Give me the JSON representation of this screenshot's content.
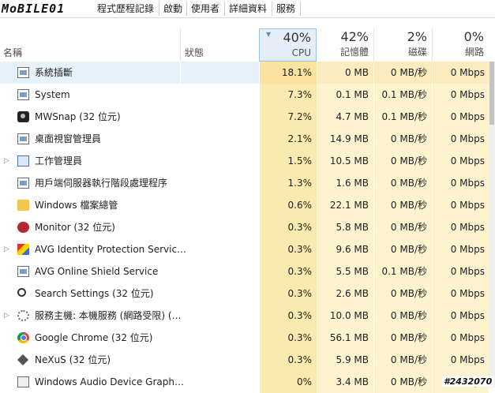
{
  "logo_text": "MoBILE01",
  "tabs": [
    "程式歷程記錄",
    "啟動",
    "使用者",
    "詳細資料",
    "服務"
  ],
  "columns": {
    "name": "名稱",
    "status": "狀態",
    "cpu": {
      "pct": "40%",
      "label": "CPU"
    },
    "memory": {
      "pct": "42%",
      "label": "記憶體"
    },
    "disk": {
      "pct": "2%",
      "label": "磁碟"
    },
    "network": {
      "pct": "0%",
      "label": "網路"
    }
  },
  "processes": [
    {
      "name": "系統插斷",
      "cpu": "18.1%",
      "mem": "0 MB",
      "disk": "0 MB/秒",
      "net": "0 Mbps",
      "icon": "window-icon",
      "expandable": false,
      "selected": true
    },
    {
      "name": "System",
      "cpu": "7.3%",
      "mem": "0.1 MB",
      "disk": "0.1 MB/秒",
      "net": "0 Mbps",
      "icon": "window-icon",
      "expandable": false
    },
    {
      "name": "MWSnap (32 位元)",
      "cpu": "7.2%",
      "mem": "4.7 MB",
      "disk": "0.1 MB/秒",
      "net": "0 Mbps",
      "icon": "camera-icon",
      "expandable": false
    },
    {
      "name": "桌面視窗管理員",
      "cpu": "2.1%",
      "mem": "14.9 MB",
      "disk": "0 MB/秒",
      "net": "0 Mbps",
      "icon": "window-icon",
      "expandable": false
    },
    {
      "name": "工作管理員",
      "cpu": "1.5%",
      "mem": "10.5 MB",
      "disk": "0 MB/秒",
      "net": "0 Mbps",
      "icon": "task-manager-icon",
      "expandable": true
    },
    {
      "name": "用戶端伺服器執行階段處理程序",
      "cpu": "1.3%",
      "mem": "1.6 MB",
      "disk": "0 MB/秒",
      "net": "0 Mbps",
      "icon": "window-icon",
      "expandable": false
    },
    {
      "name": "Windows 檔案總管",
      "cpu": "0.6%",
      "mem": "22.1 MB",
      "disk": "0 MB/秒",
      "net": "0 Mbps",
      "icon": "folder-icon",
      "expandable": false
    },
    {
      "name": "Monitor (32 位元)",
      "cpu": "0.3%",
      "mem": "5.8 MB",
      "disk": "0 MB/秒",
      "net": "0 Mbps",
      "icon": "monitor-app-icon",
      "expandable": false
    },
    {
      "name": "AVG Identity Protection Servic…",
      "cpu": "0.3%",
      "mem": "9.6 MB",
      "disk": "0 MB/秒",
      "net": "0 Mbps",
      "icon": "avg-icon",
      "expandable": true
    },
    {
      "name": "AVG Online Shield Service",
      "cpu": "0.3%",
      "mem": "5.5 MB",
      "disk": "0.1 MB/秒",
      "net": "0 Mbps",
      "icon": "window-icon",
      "expandable": false
    },
    {
      "name": "Search Settings (32 位元)",
      "cpu": "0.3%",
      "mem": "2.6 MB",
      "disk": "0 MB/秒",
      "net": "0 Mbps",
      "icon": "search-icon",
      "expandable": false
    },
    {
      "name": "服務主機: 本機服務 (網路受限) (…",
      "cpu": "0.3%",
      "mem": "10.0 MB",
      "disk": "0 MB/秒",
      "net": "0 Mbps",
      "icon": "gear-icon",
      "expandable": true
    },
    {
      "name": "Google Chrome (32 位元)",
      "cpu": "0.3%",
      "mem": "56.1 MB",
      "disk": "0 MB/秒",
      "net": "0 Mbps",
      "icon": "chrome-icon",
      "expandable": false
    },
    {
      "name": "NeXuS (32 位元)",
      "cpu": "0.3%",
      "mem": "5.9 MB",
      "disk": "0 MB/秒",
      "net": "0 Mbps",
      "icon": "diamond-icon",
      "expandable": false
    },
    {
      "name": "Windows Audio Device Graph…",
      "cpu": "0%",
      "mem": "3.4 MB",
      "disk": "0 MB/秒",
      "net": "0 Mbps",
      "icon": "speaker-icon",
      "expandable": false
    }
  ],
  "watermark": "#2432070"
}
